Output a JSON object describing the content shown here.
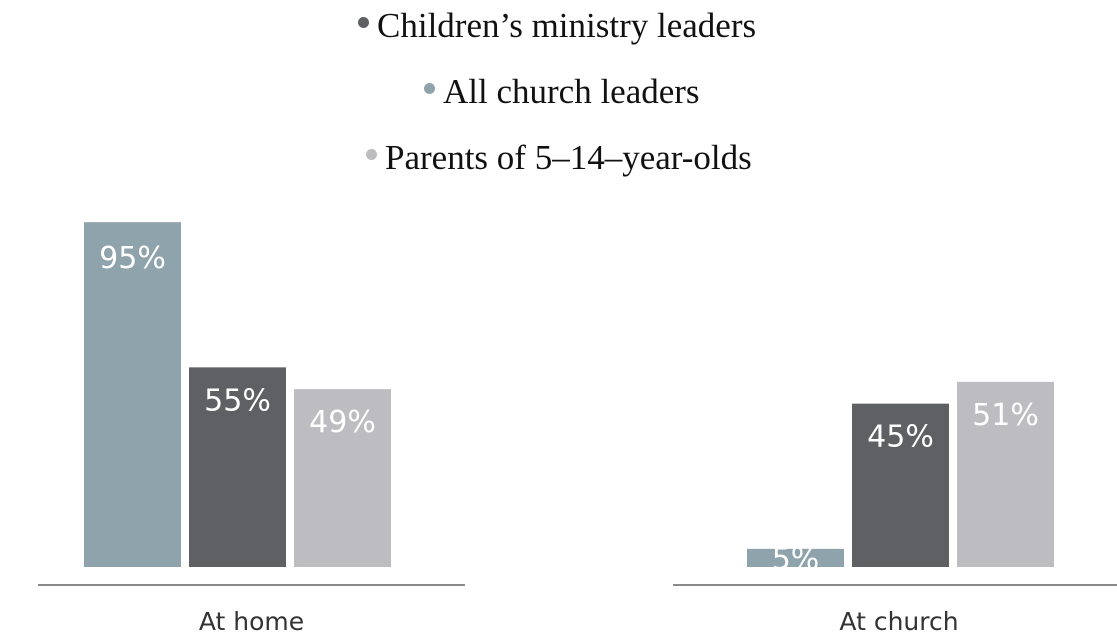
{
  "chart_data": {
    "type": "bar",
    "categories": [
      "At home",
      "At church"
    ],
    "series": [
      {
        "name": "All church leaders",
        "color": "#8fa3ac",
        "values": [
          95,
          5
        ],
        "labels": [
          "95%",
          "5%"
        ]
      },
      {
        "name": "Children’s ministry leaders",
        "color": "#5f6064",
        "values": [
          55,
          45
        ],
        "labels": [
          "55%",
          "45%"
        ]
      },
      {
        "name": "Parents of 5–14–year-olds",
        "color": "#bdbdc1",
        "values": [
          49,
          51
        ],
        "labels": [
          "49%",
          "51%"
        ]
      }
    ],
    "legend": {
      "placement": "top-center",
      "entries": [
        {
          "label": "Children’s ministry leaders",
          "color": "#5f6064"
        },
        {
          "label": "All church leaders",
          "color": "#8fa3ac"
        },
        {
          "label": "Parents of 5–14–year-olds",
          "color": "#bdbdc1"
        }
      ]
    },
    "ylim": [
      0,
      100
    ],
    "grid": false,
    "title": "",
    "xlabel": "",
    "ylabel": ""
  }
}
